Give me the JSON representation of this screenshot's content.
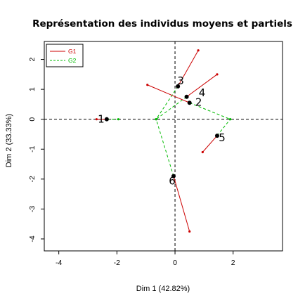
{
  "chart_data": {
    "type": "scatter",
    "title": "Représentation des individus moyens et partiels",
    "xlabel": "Dim 1 (42.82%)",
    "ylabel": "Dim 2 (33.33%)",
    "xlim": [
      -4.5,
      3.7
    ],
    "ylim": [
      -4.4,
      2.6
    ],
    "xticks": [
      "-4",
      "-2",
      "0",
      "2"
    ],
    "yticks": [
      "-4",
      "-3",
      "-2",
      "-1",
      "0",
      "1",
      "2"
    ],
    "grid": false,
    "reference_lines": {
      "x": 0,
      "y": 0,
      "style": "dashed"
    },
    "legend": {
      "placement": "top-left",
      "entries": [
        {
          "name": "G1",
          "color": "#cc0000",
          "dash": "solid"
        },
        {
          "name": "G2",
          "color": "#00bb00",
          "dash": "dashed"
        }
      ]
    },
    "individuals": [
      {
        "label": "1",
        "x": -2.35,
        "y": 0.0,
        "G1": [
          -2.7,
          0.0
        ],
        "G2": [
          -1.95,
          0.0
        ]
      },
      {
        "label": "2",
        "x": 0.5,
        "y": 0.55,
        "G1": [
          -0.95,
          1.15
        ],
        "G2": [
          1.9,
          0.0
        ]
      },
      {
        "label": "3",
        "x": 0.1,
        "y": 1.1,
        "G1": [
          0.8,
          2.3
        ],
        "G2": [
          -0.65,
          0.0
        ]
      },
      {
        "label": "4",
        "x": 0.4,
        "y": 0.75,
        "G1": [
          1.45,
          1.5
        ],
        "G2": [
          -0.65,
          0.0
        ]
      },
      {
        "label": "5",
        "x": 1.45,
        "y": -0.55,
        "G1": [
          0.95,
          -1.1
        ],
        "G2": [
          1.9,
          0.0
        ]
      },
      {
        "label": "6",
        "x": -0.05,
        "y": -1.9,
        "G1": [
          0.5,
          -3.75
        ],
        "G2": [
          -0.65,
          0.0
        ]
      }
    ],
    "colors": {
      "G1": "#cc0000",
      "G2": "#00bb00",
      "points": "#000000"
    }
  }
}
